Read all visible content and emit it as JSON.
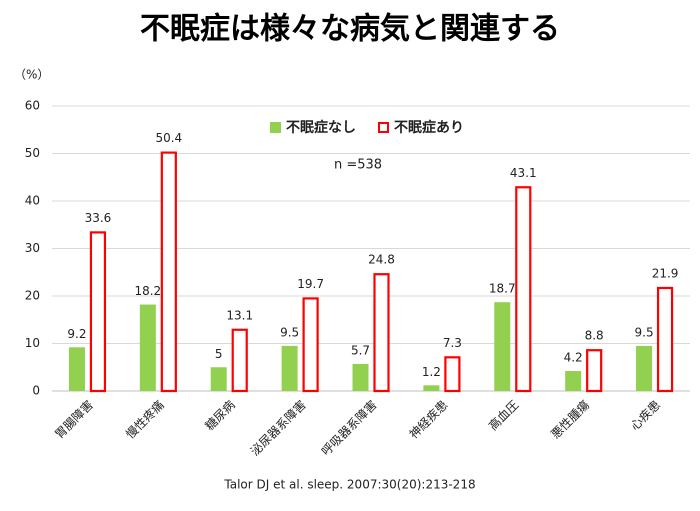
{
  "chart_data": {
    "type": "bar",
    "title": "不眠症は様々な病気と関連する",
    "y_unit": "（%）",
    "annotation": "n =538",
    "source": "Talor DJ et al. sleep. 2007:30(20):213-218",
    "categories": [
      "胃腸障害",
      "慢性疼痛",
      "糖尿病",
      "泌尿器系障害",
      "呼吸器系障害",
      "神経疾患",
      "高血圧",
      "悪性腫瘍",
      "心疾患"
    ],
    "series": [
      {
        "name": "不眠症なし",
        "color": "#92d050",
        "fill": "solid",
        "values": [
          9.2,
          18.2,
          5,
          9.5,
          5.7,
          1.2,
          18.7,
          4.2,
          9.5
        ]
      },
      {
        "name": "不眠症あり",
        "color": "#ff0000",
        "fill": "outline",
        "values": [
          33.6,
          50.4,
          13.1,
          19.7,
          24.8,
          7.3,
          43.1,
          8.8,
          21.9
        ]
      }
    ],
    "ylim": [
      0,
      60
    ],
    "yticks": [
      0,
      10,
      20,
      30,
      40,
      50,
      60
    ],
    "grid": true
  }
}
